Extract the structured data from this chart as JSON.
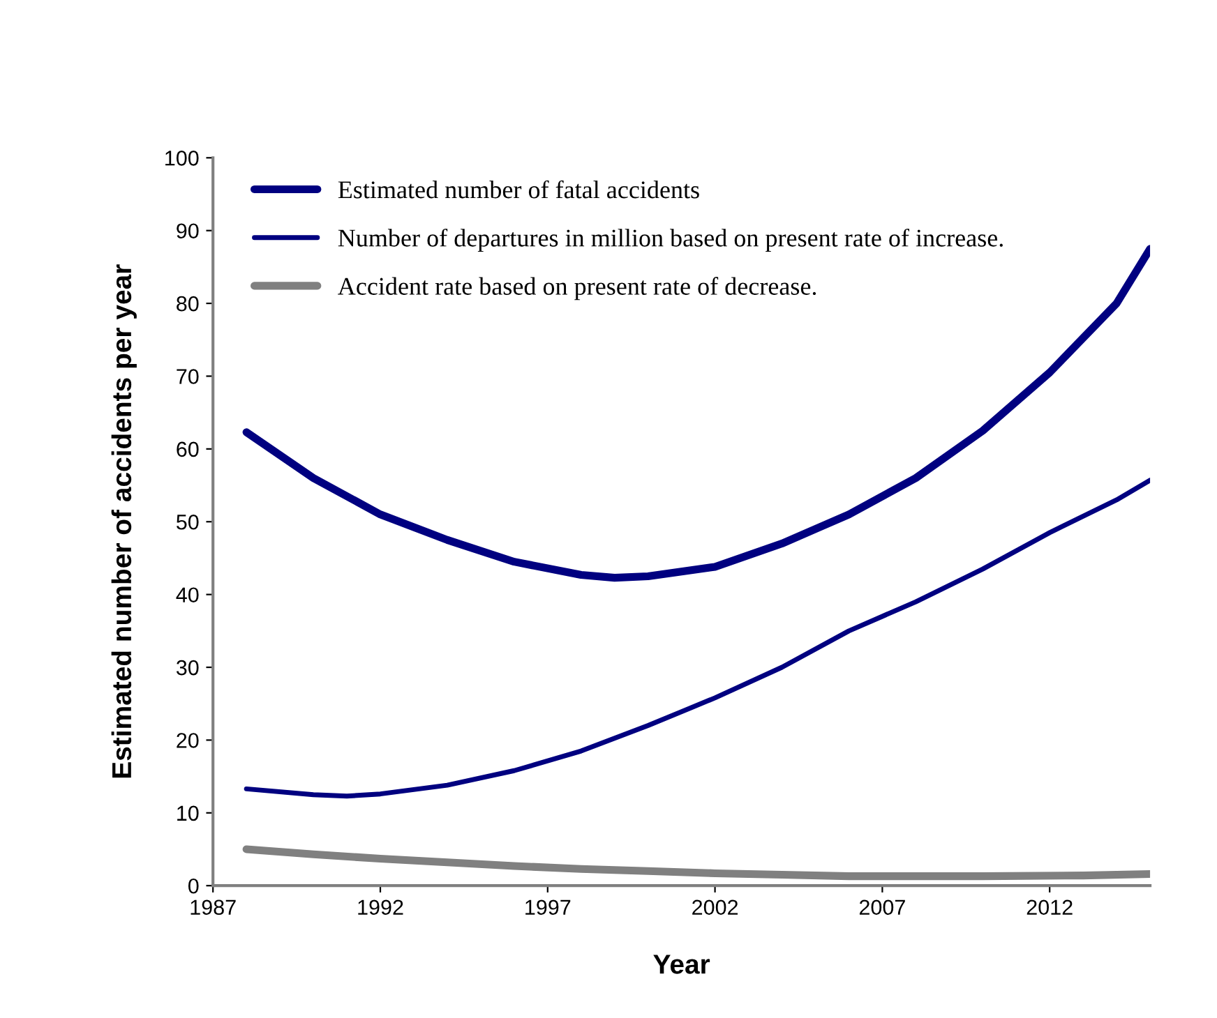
{
  "chart_data": {
    "type": "line",
    "xlabel": "Year",
    "ylabel": "Estimated number of accidents per year",
    "xlim": [
      1987,
      2015
    ],
    "xticks": [
      1987,
      1992,
      1997,
      2002,
      2007,
      2012
    ],
    "ylim": [
      0,
      100
    ],
    "yticks": [
      0,
      10,
      20,
      30,
      40,
      50,
      60,
      70,
      80,
      90,
      100
    ],
    "grid": false,
    "legend": "top left",
    "line_style": "solid",
    "marker": "none",
    "series": [
      {
        "name": "Estimated number of fatal accidents",
        "color": "#000080",
        "x": [
          1988,
          1990,
          1992,
          1994,
          1996,
          1998,
          1999,
          2000,
          2002,
          2004,
          2006,
          2008,
          2010,
          2012,
          2014,
          2015
        ],
        "values": [
          62.3,
          56,
          51,
          47.5,
          44.5,
          42.7,
          42.3,
          42.5,
          43.8,
          47,
          51,
          56,
          62.5,
          70.5,
          80,
          87.5
        ]
      },
      {
        "name": "Number of departures in million based on present rate of increase.",
        "color": "#000080",
        "x": [
          1988,
          1990,
          1991,
          1992,
          1994,
          1996,
          1998,
          2000,
          2002,
          2004,
          2006,
          2007,
          2008,
          2010,
          2012,
          2014,
          2015
        ],
        "values": [
          13.3,
          12.5,
          12.3,
          12.6,
          13.8,
          15.8,
          18.5,
          22,
          25.8,
          30,
          35,
          37,
          39,
          43.5,
          48.5,
          53,
          55.7
        ]
      },
      {
        "name": "Accident rate based on present rate of decrease.",
        "color": "#808080",
        "x": [
          1988,
          1990,
          1992,
          1994,
          1996,
          1998,
          2000,
          2002,
          2004,
          2006,
          2010,
          2013,
          2015
        ],
        "values": [
          5,
          4.3,
          3.7,
          3.2,
          2.7,
          2.3,
          2,
          1.7,
          1.5,
          1.3,
          1.3,
          1.4,
          1.6
        ]
      }
    ]
  }
}
